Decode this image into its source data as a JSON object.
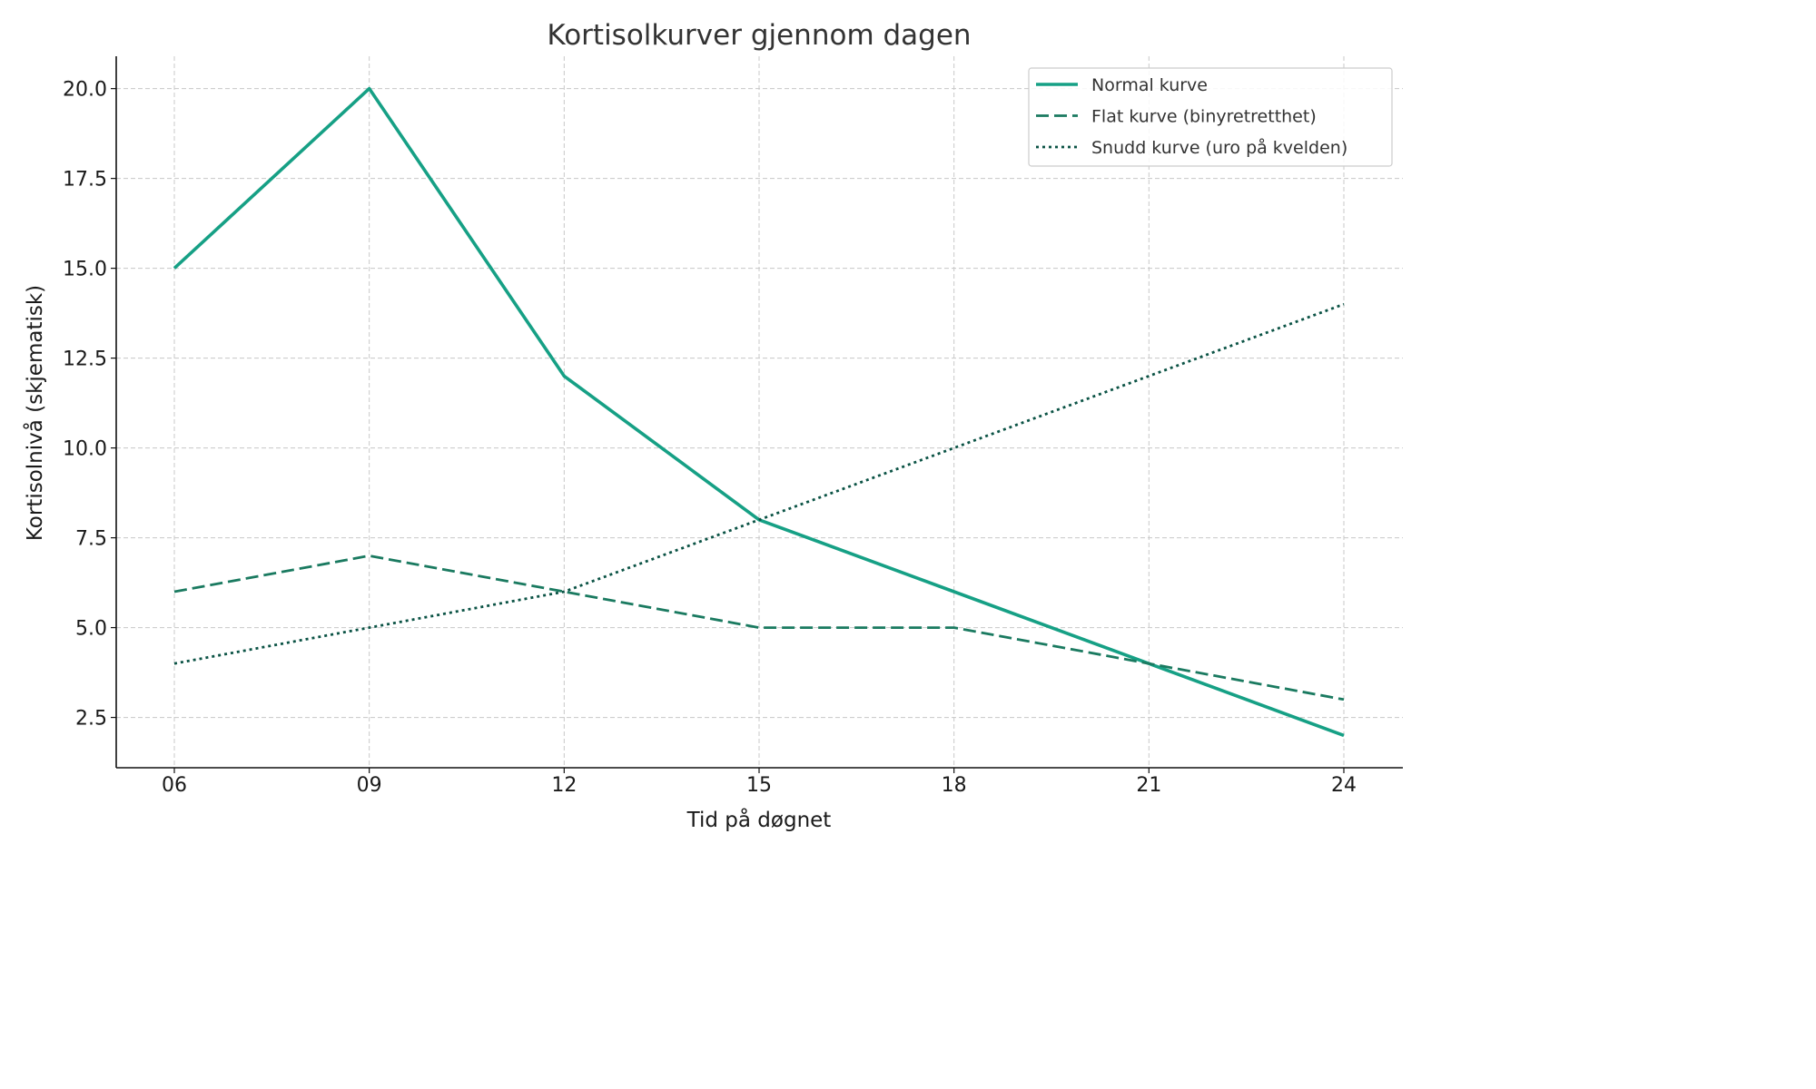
{
  "chart_data": {
    "type": "line",
    "title": "Kortisolkurver gjennom dagen",
    "xlabel": "Tid på døgnet",
    "ylabel": "Kortisolnivå (skjematisk)",
    "categories": [
      "06",
      "09",
      "12",
      "15",
      "18",
      "21",
      "24"
    ],
    "ylim": [
      1.1,
      20.9
    ],
    "yticks": [
      "2.5",
      "5.0",
      "7.5",
      "10.0",
      "12.5",
      "15.0",
      "17.5",
      "20.0"
    ],
    "grid": true,
    "legend_position": "top-right",
    "series": [
      {
        "name": "Normal kurve",
        "values": [
          15,
          20,
          12,
          8,
          6,
          4,
          2
        ],
        "color": "#16a085",
        "style": "solid"
      },
      {
        "name": "Flat kurve (binyretretthet)",
        "values": [
          6,
          7,
          6,
          5,
          5,
          4,
          3
        ],
        "color": "#1a7a60",
        "style": "dashed"
      },
      {
        "name": "Snudd kurve (uro på kvelden)",
        "values": [
          4,
          5,
          6,
          8,
          10,
          12,
          14
        ],
        "color": "#0b5345",
        "style": "dotted"
      }
    ]
  }
}
